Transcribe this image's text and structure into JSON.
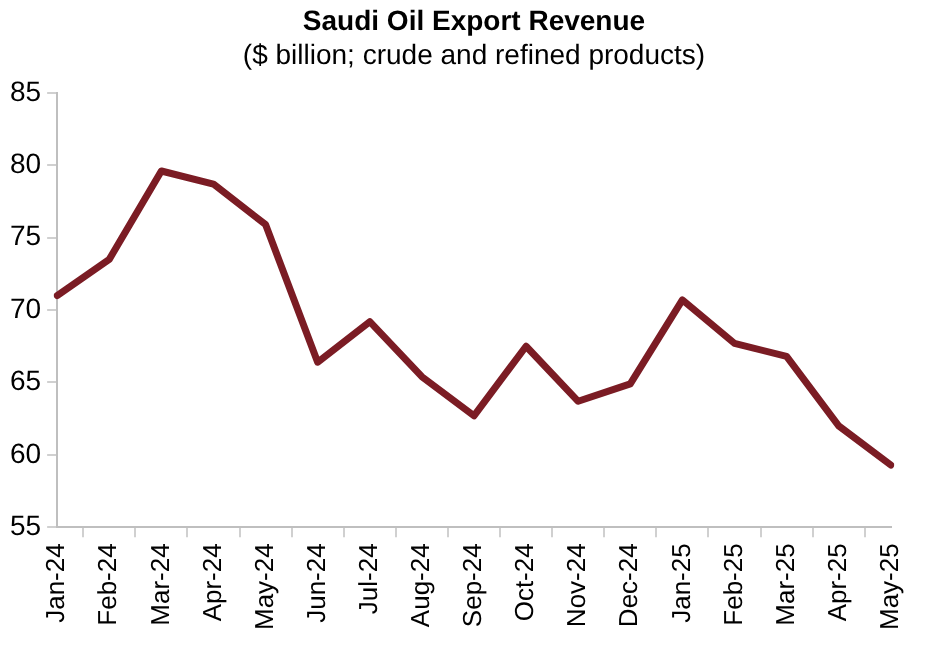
{
  "chart_data": {
    "type": "line",
    "title": "Saudi Oil Export Revenue",
    "subtitle": "($ billion; crude and refined products)",
    "categories": [
      "Jan-24",
      "Feb-24",
      "Mar-24",
      "Apr-24",
      "May-24",
      "Jun-24",
      "Jul-24",
      "Aug-24",
      "Sep-24",
      "Oct-24",
      "Nov-24",
      "Dec-24",
      "Jan-25",
      "Feb-25",
      "Mar-25",
      "Apr-25",
      "May-25"
    ],
    "series": [
      {
        "color": "#7b1c24",
        "values": [
          71,
          73.5,
          79.6,
          78.7,
          75.9,
          66.4,
          69.2,
          65.4,
          62.7,
          67.5,
          63.7,
          64.9,
          70.7,
          67.7,
          66.8,
          62,
          59.3
        ]
      }
    ],
    "ylim": [
      55,
      85
    ],
    "yticks": [
      55,
      60,
      65,
      70,
      75,
      80,
      85
    ],
    "grid": false,
    "legend": false,
    "marker": "none",
    "line_style": "solid"
  }
}
